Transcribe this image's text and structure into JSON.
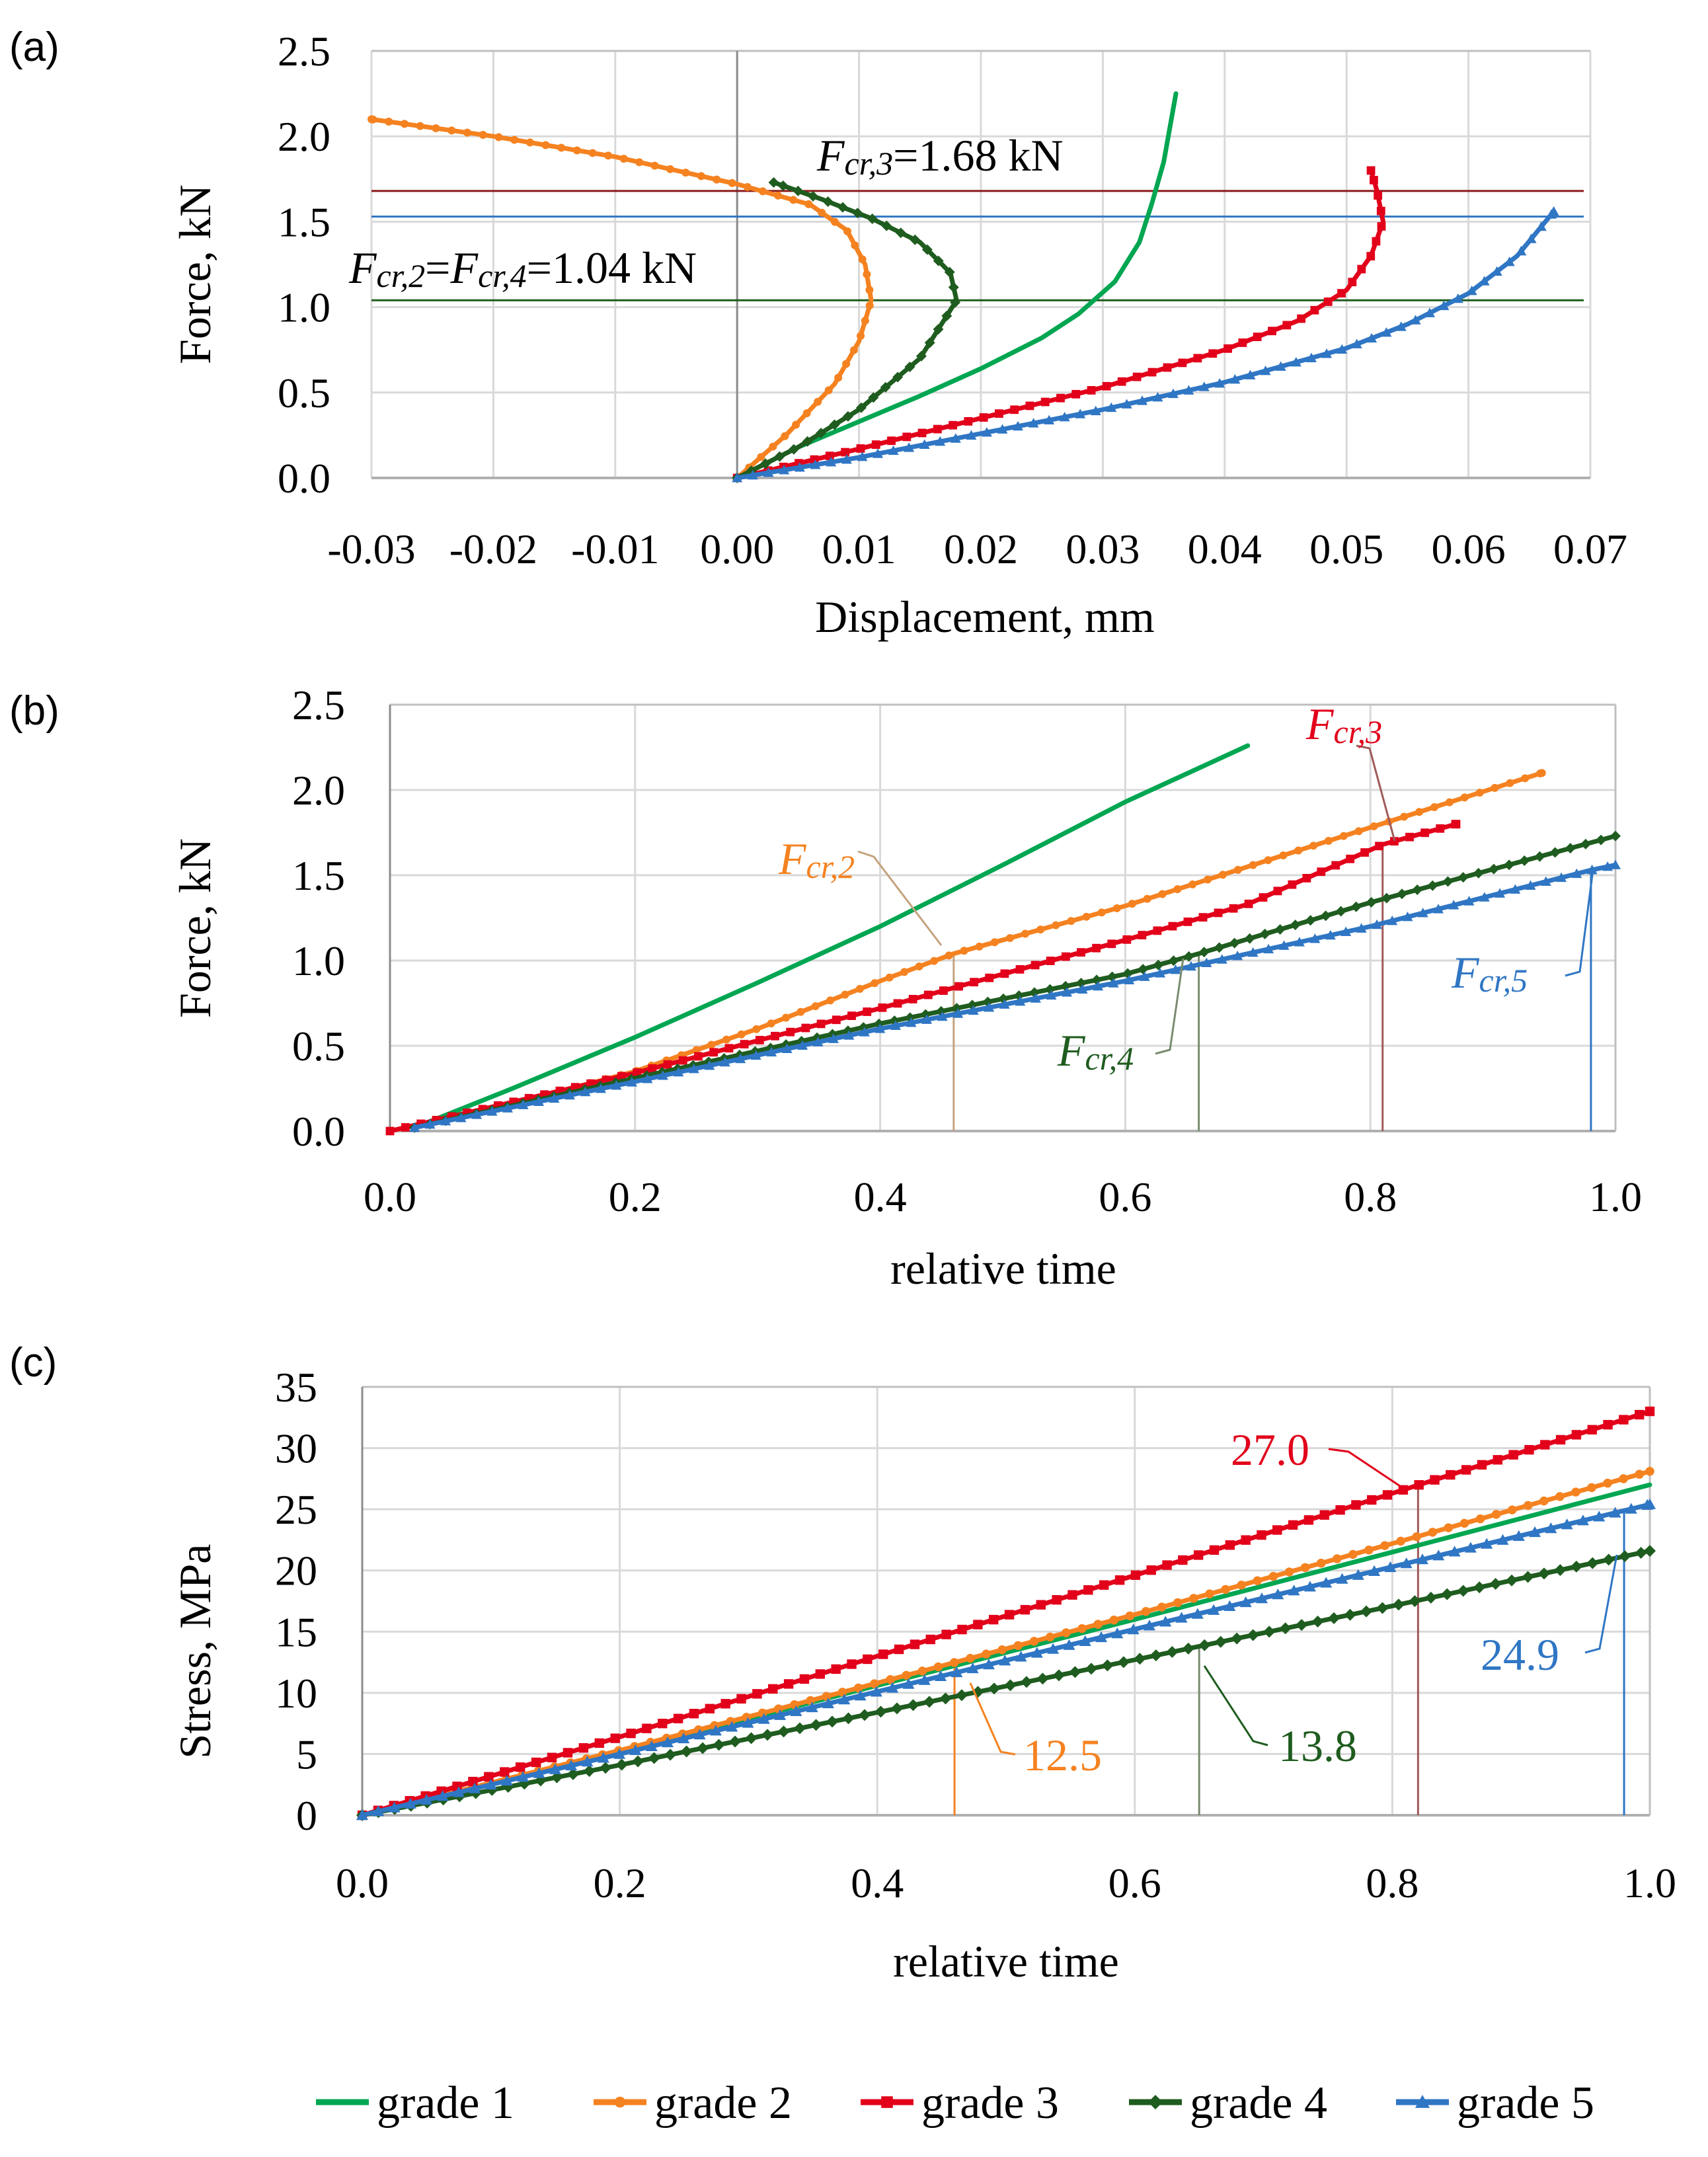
{
  "colors": {
    "grade1": "#00a651",
    "grade2": "#f58220",
    "grade3": "#e2001a",
    "grade4": "#1f5c1f",
    "grade5": "#2f76c4",
    "grid": "#d9d9d9",
    "axis": "#000000",
    "frame": "#bfbfbf"
  },
  "legend": {
    "items": [
      {
        "label": "grade 1",
        "color": "#00a651",
        "marker": "none"
      },
      {
        "label": "grade 2",
        "color": "#f58220",
        "marker": "circle"
      },
      {
        "label": "grade 3",
        "color": "#e2001a",
        "marker": "square"
      },
      {
        "label": "grade 4",
        "color": "#1f5c1f",
        "marker": "diamond"
      },
      {
        "label": "grade 5",
        "color": "#2f76c4",
        "marker": "triangle"
      }
    ]
  },
  "chart_data": [
    {
      "panel": "(a)",
      "type": "line",
      "xlabel": "Displacement, mm",
      "ylabel": "Force, kN",
      "xlim": [
        -0.03,
        0.07
      ],
      "ylim": [
        0,
        2.5
      ],
      "xticks": [
        "-0.03",
        "-0.02",
        "-0.01",
        "0.00",
        "0.01",
        "0.02",
        "0.03",
        "0.04",
        "0.05",
        "0.06",
        "0.07"
      ],
      "yticks": [
        "0.0",
        "0.5",
        "1.0",
        "1.5",
        "2.0",
        "2.5"
      ],
      "grid": true,
      "series": [
        {
          "name": "grade 1",
          "x": [
            0.0,
            0.005,
            0.01,
            0.015,
            0.02,
            0.025,
            0.028,
            0.031,
            0.033,
            0.034,
            0.035,
            0.036
          ],
          "y": [
            0.0,
            0.18,
            0.33,
            0.48,
            0.64,
            0.82,
            0.96,
            1.15,
            1.38,
            1.6,
            1.85,
            2.25
          ]
        },
        {
          "name": "grade 2",
          "x": [
            0.0,
            0.004,
            0.008,
            0.01,
            0.011,
            0.0105,
            0.009,
            0.006,
            0.0,
            -0.01,
            -0.02,
            -0.03
          ],
          "y": [
            0.0,
            0.25,
            0.55,
            0.8,
            1.04,
            1.25,
            1.45,
            1.6,
            1.72,
            1.88,
            2.0,
            2.1
          ]
        },
        {
          "name": "grade 3",
          "x": [
            0.0,
            0.01,
            0.02,
            0.03,
            0.04,
            0.046,
            0.05,
            0.052,
            0.053,
            0.0525,
            0.052
          ],
          "y": [
            0.0,
            0.17,
            0.35,
            0.53,
            0.75,
            0.92,
            1.1,
            1.3,
            1.5,
            1.68,
            1.8
          ]
        },
        {
          "name": "grade 4",
          "x": [
            0.0,
            0.005,
            0.01,
            0.015,
            0.018,
            0.0175,
            0.015,
            0.011,
            0.007,
            0.003
          ],
          "y": [
            0.0,
            0.18,
            0.4,
            0.7,
            1.04,
            1.2,
            1.38,
            1.52,
            1.63,
            1.73
          ]
        },
        {
          "name": "grade 5",
          "x": [
            0.0,
            0.01,
            0.02,
            0.03,
            0.04,
            0.05,
            0.055,
            0.06,
            0.064,
            0.067
          ],
          "y": [
            0.0,
            0.12,
            0.26,
            0.4,
            0.56,
            0.76,
            0.9,
            1.08,
            1.3,
            1.56
          ]
        }
      ],
      "reference_lines": [
        {
          "y": 1.68,
          "color": "#8b1a1a"
        },
        {
          "y": 1.53,
          "color": "#2f76c4"
        },
        {
          "y": 1.04,
          "color": "#1f5c1f"
        }
      ],
      "annotations": [
        {
          "sym": "F",
          "sub": "cr,3",
          "rest": "=1.68 kN"
        },
        {
          "sym": "F",
          "sub": "cr,2",
          "mid": "=",
          "sym2": "F",
          "sub2": "cr,4",
          "rest": "=1.04 kN"
        }
      ]
    },
    {
      "panel": "(b)",
      "type": "line",
      "xlabel": "relative time",
      "ylabel": "Force, kN",
      "xlim": [
        0,
        1.0
      ],
      "ylim": [
        0,
        2.5
      ],
      "xticks": [
        "0.0",
        "0.2",
        "0.4",
        "0.6",
        "0.8",
        "1.0"
      ],
      "yticks": [
        "0.0",
        "0.5",
        "1.0",
        "1.5",
        "2.0",
        "2.5"
      ],
      "grid": true,
      "series": [
        {
          "name": "grade 1",
          "x": [
            0.02,
            0.1,
            0.2,
            0.3,
            0.4,
            0.5,
            0.6,
            0.7
          ],
          "y": [
            0.02,
            0.25,
            0.55,
            0.87,
            1.2,
            1.56,
            1.93,
            2.26
          ]
        },
        {
          "name": "grade 2",
          "x": [
            0.0,
            0.1,
            0.2,
            0.3,
            0.4,
            0.46,
            0.6,
            0.7,
            0.8,
            0.94
          ],
          "y": [
            0.0,
            0.16,
            0.35,
            0.6,
            0.88,
            1.04,
            1.32,
            1.55,
            1.78,
            2.1
          ]
        },
        {
          "name": "grade 3",
          "x": [
            0.0,
            0.1,
            0.2,
            0.3,
            0.4,
            0.5,
            0.6,
            0.7,
            0.81,
            0.87
          ],
          "y": [
            0.0,
            0.17,
            0.34,
            0.53,
            0.72,
            0.92,
            1.12,
            1.33,
            1.68,
            1.8
          ]
        },
        {
          "name": "grade 4",
          "x": [
            0.02,
            0.2,
            0.4,
            0.6,
            0.66,
            0.8,
            1.0
          ],
          "y": [
            0.02,
            0.31,
            0.63,
            0.92,
            1.04,
            1.34,
            1.73
          ]
        },
        {
          "name": "grade 5",
          "x": [
            0.02,
            0.2,
            0.4,
            0.6,
            0.8,
            0.98,
            1.0
          ],
          "y": [
            0.02,
            0.29,
            0.6,
            0.88,
            1.2,
            1.53,
            1.56
          ]
        }
      ],
      "reference_lines": [
        {
          "x": 0.46,
          "y": 1.04,
          "color": "#c4a37e"
        },
        {
          "x": 0.66,
          "y": 1.04,
          "color": "#7a8c6f"
        },
        {
          "x": 0.81,
          "y": 1.68,
          "color": "#a05a5a"
        },
        {
          "x": 0.98,
          "y": 1.53,
          "color": "#2f76c4"
        }
      ],
      "annotations": [
        {
          "sym": "F",
          "sub": "cr,2",
          "series": "grade 2"
        },
        {
          "sym": "F",
          "sub": "cr,3",
          "series": "grade 3"
        },
        {
          "sym": "F",
          "sub": "cr,4",
          "series": "grade 4"
        },
        {
          "sym": "F",
          "sub": "cr,5",
          "series": "grade 5"
        }
      ]
    },
    {
      "panel": "(c)",
      "type": "line",
      "xlabel": "relative time",
      "ylabel": "Stress, MPa",
      "xlim": [
        0,
        1.0
      ],
      "ylim": [
        0,
        35
      ],
      "xticks": [
        "0.0",
        "0.2",
        "0.4",
        "0.6",
        "0.8",
        "1.0"
      ],
      "yticks": [
        "0",
        "5",
        "10",
        "15",
        "20",
        "25",
        "30",
        "35"
      ],
      "grid": true,
      "series": [
        {
          "name": "grade 1",
          "x": [
            0.0,
            0.2,
            0.4,
            0.6,
            0.8,
            1.0
          ],
          "y": [
            0.0,
            5.2,
            10.6,
            16.0,
            21.5,
            27.0
          ]
        },
        {
          "name": "grade 2",
          "x": [
            0.0,
            0.2,
            0.4,
            0.6,
            0.8,
            1.0
          ],
          "y": [
            0.0,
            5.3,
            10.8,
            16.4,
            22.2,
            28.1
          ]
        },
        {
          "name": "grade 3",
          "x": [
            0.0,
            0.2,
            0.4,
            0.6,
            0.8,
            1.0
          ],
          "y": [
            0.0,
            6.4,
            13.0,
            19.6,
            26.3,
            33.0
          ]
        },
        {
          "name": "grade 4",
          "x": [
            0.0,
            0.2,
            0.4,
            0.6,
            0.8,
            1.0
          ],
          "y": [
            0.0,
            4.1,
            8.4,
            12.7,
            17.1,
            21.6
          ]
        },
        {
          "name": "grade 5",
          "x": [
            0.0,
            0.2,
            0.4,
            0.6,
            0.8,
            1.0
          ],
          "y": [
            0.0,
            5.0,
            10.1,
            15.2,
            20.3,
            25.4
          ]
        }
      ],
      "reference_lines": [
        {
          "x": 0.46,
          "y": 12.5,
          "color": "#f58220"
        },
        {
          "x": 0.65,
          "y": 13.8,
          "color": "#7a8c6f"
        },
        {
          "x": 0.82,
          "y": 27.0,
          "color": "#a05a5a"
        },
        {
          "x": 0.98,
          "y": 24.9,
          "color": "#2f76c4"
        }
      ],
      "annotations": [
        {
          "text": "27.0",
          "series": "grade 3"
        },
        {
          "text": "12.5",
          "series": "grade 2"
        },
        {
          "text": "13.8",
          "series": "grade 4"
        },
        {
          "text": "24.9",
          "series": "grade 5"
        }
      ]
    }
  ]
}
